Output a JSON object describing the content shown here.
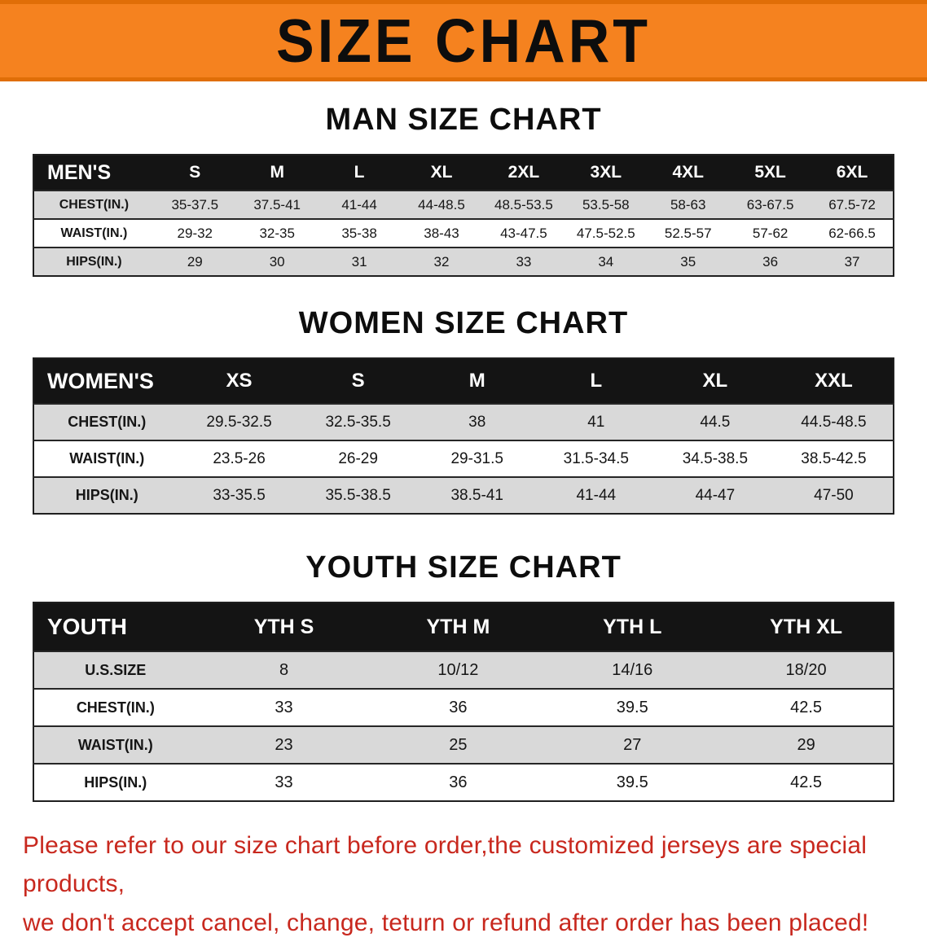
{
  "banner": {
    "title": "SIZE CHART",
    "bg_color": "#F5821F"
  },
  "sections": {
    "men": {
      "heading": "MAN SIZE CHART",
      "table": {
        "header": [
          "MEN'S",
          "S",
          "M",
          "L",
          "XL",
          "2XL",
          "3XL",
          "4XL",
          "5XL",
          "6XL"
        ],
        "rows": [
          {
            "label": "CHEST(IN.)",
            "values": [
              "35-37.5",
              "37.5-41",
              "41-44",
              "44-48.5",
              "48.5-53.5",
              "53.5-58",
              "58-63",
              "63-67.5",
              "67.5-72"
            ]
          },
          {
            "label": "WAIST(IN.)",
            "values": [
              "29-32",
              "32-35",
              "35-38",
              "38-43",
              "43-47.5",
              "47.5-52.5",
              "52.5-57",
              "57-62",
              "62-66.5"
            ]
          },
          {
            "label": "HIPS(IN.)",
            "values": [
              "29",
              "30",
              "31",
              "32",
              "33",
              "34",
              "35",
              "36",
              "37"
            ]
          }
        ]
      }
    },
    "women": {
      "heading": "WOMEN SIZE CHART",
      "table": {
        "header": [
          "WOMEN'S",
          "XS",
          "S",
          "M",
          "L",
          "XL",
          "XXL"
        ],
        "rows": [
          {
            "label": "CHEST(IN.)",
            "values": [
              "29.5-32.5",
              "32.5-35.5",
              "38",
              "41",
              "44.5",
              "44.5-48.5"
            ]
          },
          {
            "label": "WAIST(IN.)",
            "values": [
              "23.5-26",
              "26-29",
              "29-31.5",
              "31.5-34.5",
              "34.5-38.5",
              "38.5-42.5"
            ]
          },
          {
            "label": "HIPS(IN.)",
            "values": [
              "33-35.5",
              "35.5-38.5",
              "38.5-41",
              "41-44",
              "44-47",
              "47-50"
            ]
          }
        ]
      }
    },
    "youth": {
      "heading": "YOUTH SIZE CHART",
      "table": {
        "header": [
          "YOUTH",
          "YTH S",
          "YTH M",
          "YTH L",
          "YTH XL"
        ],
        "rows": [
          {
            "label": "U.S.SIZE",
            "values": [
              "8",
              "10/12",
              "14/16",
              "18/20"
            ]
          },
          {
            "label": "CHEST(IN.)",
            "values": [
              "33",
              "36",
              "39.5",
              "42.5"
            ]
          },
          {
            "label": "WAIST(IN.)",
            "values": [
              "23",
              "25",
              "27",
              "29"
            ]
          },
          {
            "label": "HIPS(IN.)",
            "values": [
              "33",
              "36",
              "39.5",
              "42.5"
            ]
          }
        ]
      }
    }
  },
  "footer": {
    "line1": "Please refer to our size chart before order,the customized jerseys are special products,",
    "line2": "we don't accept cancel, change, teturn or refund after order has been placed!",
    "text_color": "#C8281E"
  }
}
